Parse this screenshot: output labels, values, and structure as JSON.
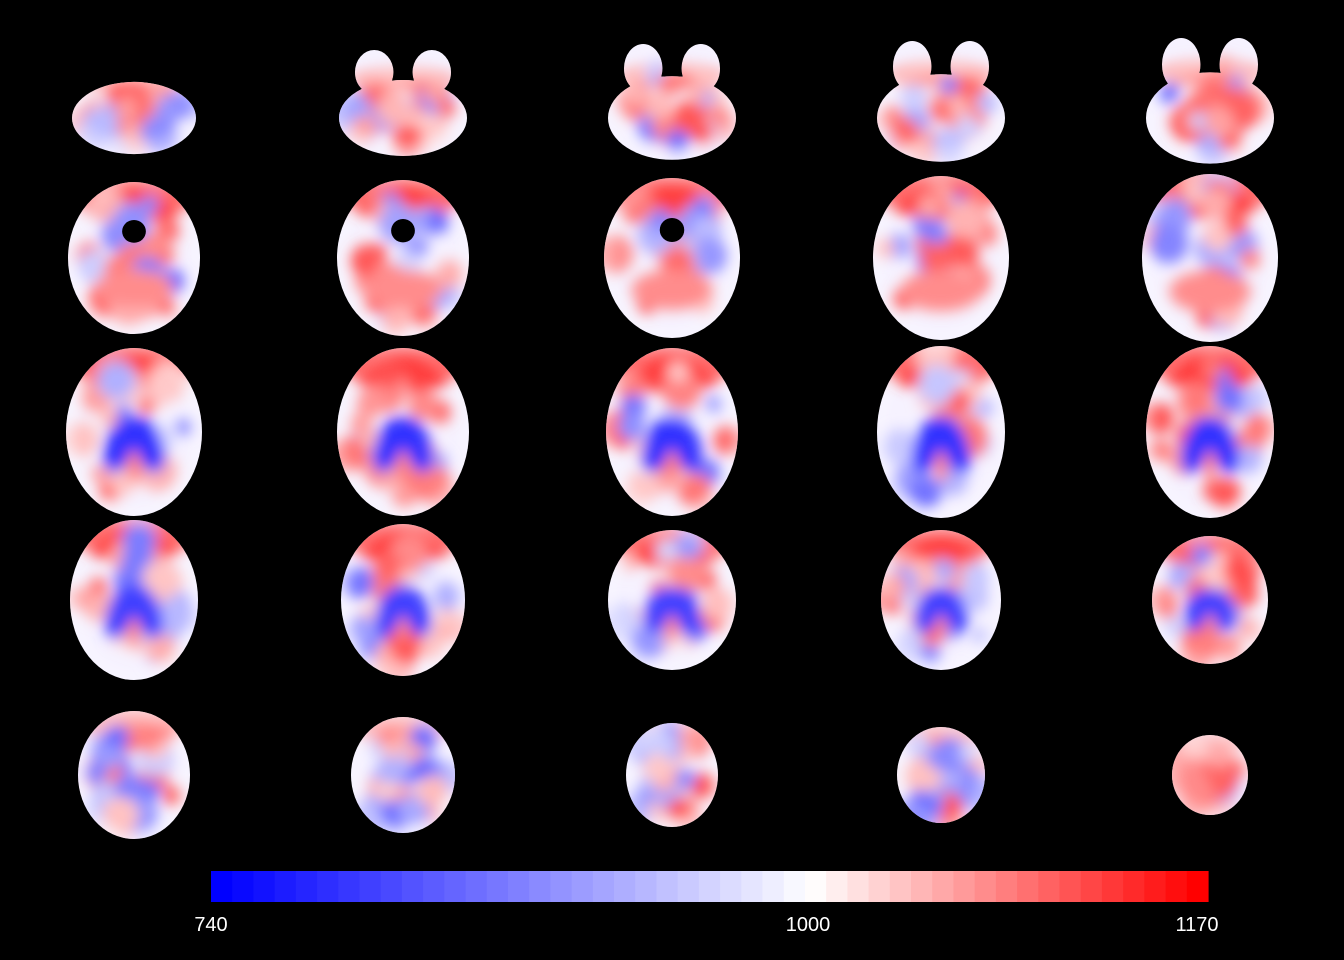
{
  "figure": {
    "rows": 5,
    "columns": 5,
    "background": "#000000"
  },
  "colorbar": {
    "min_label": "740",
    "mid_label": "1000",
    "max_label": "1170",
    "min_value": 740,
    "mid_value": 1000,
    "max_value": 1170,
    "low_color": "#0000ff",
    "mid_color": "#ffffff",
    "high_color": "#ff0000",
    "steps": 47
  }
}
